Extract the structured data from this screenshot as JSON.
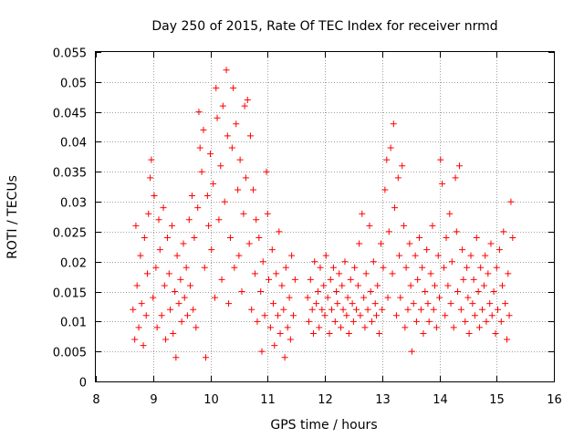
{
  "chart_data": {
    "type": "scatter",
    "title": "Day 250 of 2015, Rate Of TEC Index for receiver nrmd",
    "xlabel": "GPS time / hours",
    "ylabel": "ROTI / TECUs",
    "xlim": [
      8,
      16
    ],
    "ylim": [
      0,
      0.055
    ],
    "xticks": [
      8,
      9,
      10,
      11,
      12,
      13,
      14,
      15,
      16
    ],
    "xtick_labels": [
      "8",
      "9",
      "10",
      "11",
      "12",
      "13",
      "14",
      "15",
      "16"
    ],
    "yticks": [
      0,
      0.005,
      0.01,
      0.015,
      0.02,
      0.025,
      0.03,
      0.035,
      0.04,
      0.045,
      0.05,
      0.055
    ],
    "ytick_labels": [
      "0",
      "0.005",
      "0.01",
      "0.015",
      "0.02",
      "0.025",
      "0.03",
      "0.035",
      "0.04",
      "0.045",
      "0.05",
      "0.055"
    ],
    "grid": true,
    "marker": "+",
    "color": "#ff0000",
    "series": [
      {
        "name": "ROTI",
        "points": [
          [
            8.65,
            0.012
          ],
          [
            8.68,
            0.007
          ],
          [
            8.7,
            0.026
          ],
          [
            8.72,
            0.016
          ],
          [
            8.75,
            0.009
          ],
          [
            8.78,
            0.021
          ],
          [
            8.8,
            0.013
          ],
          [
            8.83,
            0.006
          ],
          [
            8.85,
            0.024
          ],
          [
            8.88,
            0.011
          ],
          [
            8.9,
            0.018
          ],
          [
            8.92,
            0.028
          ],
          [
            8.95,
            0.034
          ],
          [
            8.97,
            0.037
          ],
          [
            9.0,
            0.014
          ],
          [
            9.02,
            0.031
          ],
          [
            9.05,
            0.019
          ],
          [
            9.07,
            0.009
          ],
          [
            9.1,
            0.027
          ],
          [
            9.12,
            0.022
          ],
          [
            9.15,
            0.011
          ],
          [
            9.18,
            0.029
          ],
          [
            9.2,
            0.016
          ],
          [
            9.22,
            0.007
          ],
          [
            9.25,
            0.024
          ],
          [
            9.28,
            0.018
          ],
          [
            9.3,
            0.012
          ],
          [
            9.33,
            0.026
          ],
          [
            9.35,
            0.008
          ],
          [
            9.38,
            0.015
          ],
          [
            9.4,
            0.004
          ],
          [
            9.42,
            0.021
          ],
          [
            9.45,
            0.013
          ],
          [
            9.48,
            0.017
          ],
          [
            9.5,
            0.01
          ],
          [
            9.53,
            0.023
          ],
          [
            9.55,
            0.014
          ],
          [
            9.58,
            0.019
          ],
          [
            9.6,
            0.011
          ],
          [
            9.63,
            0.027
          ],
          [
            9.65,
            0.016
          ],
          [
            9.68,
            0.031
          ],
          [
            9.7,
            0.012
          ],
          [
            9.72,
            0.024
          ],
          [
            9.75,
            0.009
          ],
          [
            9.78,
            0.029
          ],
          [
            9.8,
            0.045
          ],
          [
            9.82,
            0.039
          ],
          [
            9.85,
            0.035
          ],
          [
            9.88,
            0.042
          ],
          [
            9.9,
            0.019
          ],
          [
            9.92,
            0.004
          ],
          [
            9.95,
            0.031
          ],
          [
            9.97,
            0.026
          ],
          [
            10.0,
            0.038
          ],
          [
            10.02,
            0.022
          ],
          [
            10.05,
            0.033
          ],
          [
            10.08,
            0.014
          ],
          [
            10.1,
            0.049
          ],
          [
            10.12,
            0.044
          ],
          [
            10.15,
            0.027
          ],
          [
            10.18,
            0.036
          ],
          [
            10.2,
            0.017
          ],
          [
            10.22,
            0.046
          ],
          [
            10.25,
            0.03
          ],
          [
            10.28,
            0.052
          ],
          [
            10.3,
            0.041
          ],
          [
            10.32,
            0.013
          ],
          [
            10.35,
            0.024
          ],
          [
            10.38,
            0.039
          ],
          [
            10.4,
            0.049
          ],
          [
            10.42,
            0.019
          ],
          [
            10.45,
            0.043
          ],
          [
            10.48,
            0.032
          ],
          [
            10.5,
            0.021
          ],
          [
            10.52,
            0.037
          ],
          [
            10.55,
            0.015
          ],
          [
            10.58,
            0.028
          ],
          [
            10.6,
            0.046
          ],
          [
            10.62,
            0.034
          ],
          [
            10.65,
            0.047
          ],
          [
            10.68,
            0.023
          ],
          [
            10.7,
            0.041
          ],
          [
            10.72,
            0.012
          ],
          [
            10.75,
            0.032
          ],
          [
            10.78,
            0.018
          ],
          [
            10.8,
            0.027
          ],
          [
            10.82,
            0.01
          ],
          [
            10.85,
            0.024
          ],
          [
            10.88,
            0.015
          ],
          [
            10.9,
            0.005
          ],
          [
            10.92,
            0.02
          ],
          [
            10.95,
            0.011
          ],
          [
            10.98,
            0.035
          ],
          [
            11.0,
            0.028
          ],
          [
            11.02,
            0.017
          ],
          [
            11.05,
            0.009
          ],
          [
            11.08,
            0.022
          ],
          [
            11.1,
            0.013
          ],
          [
            11.12,
            0.006
          ],
          [
            11.15,
            0.018
          ],
          [
            11.18,
            0.011
          ],
          [
            11.2,
            0.025
          ],
          [
            11.22,
            0.008
          ],
          [
            11.25,
            0.016
          ],
          [
            11.28,
            0.012
          ],
          [
            11.3,
            0.004
          ],
          [
            11.32,
            0.019
          ],
          [
            11.35,
            0.009
          ],
          [
            11.38,
            0.014
          ],
          [
            11.4,
            0.007
          ],
          [
            11.42,
            0.021
          ],
          [
            11.45,
            0.011
          ],
          [
            11.48,
            0.017
          ],
          [
            11.7,
            0.014
          ],
          [
            11.72,
            0.01
          ],
          [
            11.75,
            0.017
          ],
          [
            11.78,
            0.012
          ],
          [
            11.8,
            0.008
          ],
          [
            11.82,
            0.02
          ],
          [
            11.85,
            0.013
          ],
          [
            11.88,
            0.015
          ],
          [
            11.9,
            0.009
          ],
          [
            11.92,
            0.019
          ],
          [
            11.95,
            0.012
          ],
          [
            11.98,
            0.016
          ],
          [
            12.0,
            0.011
          ],
          [
            12.02,
            0.021
          ],
          [
            12.05,
            0.014
          ],
          [
            12.08,
            0.008
          ],
          [
            12.1,
            0.017
          ],
          [
            12.12,
            0.012
          ],
          [
            12.15,
            0.019
          ],
          [
            12.18,
            0.01
          ],
          [
            12.2,
            0.015
          ],
          [
            12.22,
            0.013
          ],
          [
            12.25,
            0.018
          ],
          [
            12.28,
            0.009
          ],
          [
            12.3,
            0.016
          ],
          [
            12.32,
            0.012
          ],
          [
            12.35,
            0.02
          ],
          [
            12.38,
            0.011
          ],
          [
            12.4,
            0.014
          ],
          [
            12.42,
            0.008
          ],
          [
            12.45,
            0.017
          ],
          [
            12.48,
            0.013
          ],
          [
            12.5,
            0.01
          ],
          [
            12.52,
            0.019
          ],
          [
            12.55,
            0.012
          ],
          [
            12.58,
            0.016
          ],
          [
            12.6,
            0.023
          ],
          [
            12.62,
            0.011
          ],
          [
            12.65,
            0.028
          ],
          [
            12.68,
            0.014
          ],
          [
            12.7,
            0.009
          ],
          [
            12.72,
            0.018
          ],
          [
            12.75,
            0.012
          ],
          [
            12.78,
            0.026
          ],
          [
            12.8,
            0.015
          ],
          [
            12.82,
            0.01
          ],
          [
            12.85,
            0.02
          ],
          [
            12.88,
            0.013
          ],
          [
            12.9,
            0.011
          ],
          [
            12.92,
            0.016
          ],
          [
            12.95,
            0.008
          ],
          [
            12.98,
            0.023
          ],
          [
            13.0,
            0.012
          ],
          [
            13.02,
            0.019
          ],
          [
            13.05,
            0.032
          ],
          [
            13.08,
            0.037
          ],
          [
            13.1,
            0.014
          ],
          [
            13.12,
            0.025
          ],
          [
            13.15,
            0.039
          ],
          [
            13.18,
            0.018
          ],
          [
            13.2,
            0.043
          ],
          [
            13.22,
            0.029
          ],
          [
            13.25,
            0.011
          ],
          [
            13.28,
            0.034
          ],
          [
            13.3,
            0.021
          ],
          [
            13.32,
            0.014
          ],
          [
            13.35,
            0.036
          ],
          [
            13.38,
            0.026
          ],
          [
            13.4,
            0.009
          ],
          [
            13.42,
            0.019
          ],
          [
            13.45,
            0.012
          ],
          [
            13.48,
            0.023
          ],
          [
            13.5,
            0.016
          ],
          [
            13.52,
            0.005
          ],
          [
            13.55,
            0.013
          ],
          [
            13.58,
            0.021
          ],
          [
            13.6,
            0.01
          ],
          [
            13.62,
            0.017
          ],
          [
            13.65,
            0.024
          ],
          [
            13.68,
            0.012
          ],
          [
            13.7,
            0.019
          ],
          [
            13.72,
            0.008
          ],
          [
            13.75,
            0.015
          ],
          [
            13.78,
            0.022
          ],
          [
            13.8,
            0.013
          ],
          [
            13.82,
            0.01
          ],
          [
            13.85,
            0.018
          ],
          [
            13.88,
            0.026
          ],
          [
            13.9,
            0.012
          ],
          [
            13.92,
            0.016
          ],
          [
            13.95,
            0.009
          ],
          [
            13.98,
            0.021
          ],
          [
            14.0,
            0.014
          ],
          [
            14.02,
            0.037
          ],
          [
            14.05,
            0.033
          ],
          [
            14.08,
            0.019
          ],
          [
            14.1,
            0.011
          ],
          [
            14.12,
            0.024
          ],
          [
            14.15,
            0.016
          ],
          [
            14.18,
            0.028
          ],
          [
            14.2,
            0.013
          ],
          [
            14.22,
            0.02
          ],
          [
            14.25,
            0.009
          ],
          [
            14.28,
            0.034
          ],
          [
            14.3,
            0.025
          ],
          [
            14.32,
            0.015
          ],
          [
            14.35,
            0.036
          ],
          [
            14.38,
            0.012
          ],
          [
            14.4,
            0.022
          ],
          [
            14.42,
            0.017
          ],
          [
            14.45,
            0.01
          ],
          [
            14.48,
            0.019
          ],
          [
            14.5,
            0.014
          ],
          [
            14.52,
            0.008
          ],
          [
            14.55,
            0.021
          ],
          [
            14.58,
            0.013
          ],
          [
            14.6,
            0.017
          ],
          [
            14.62,
            0.011
          ],
          [
            14.65,
            0.024
          ],
          [
            14.68,
            0.015
          ],
          [
            14.7,
            0.009
          ],
          [
            14.72,
            0.019
          ],
          [
            14.75,
            0.012
          ],
          [
            14.78,
            0.016
          ],
          [
            14.8,
            0.021
          ],
          [
            14.82,
            0.01
          ],
          [
            14.85,
            0.018
          ],
          [
            14.88,
            0.013
          ],
          [
            14.9,
            0.023
          ],
          [
            14.92,
            0.011
          ],
          [
            14.95,
            0.015
          ],
          [
            14.98,
            0.008
          ],
          [
            15.0,
            0.019
          ],
          [
            15.02,
            0.012
          ],
          [
            15.05,
            0.022
          ],
          [
            15.08,
            0.01
          ],
          [
            15.1,
            0.016
          ],
          [
            15.12,
            0.025
          ],
          [
            15.15,
            0.013
          ],
          [
            15.18,
            0.007
          ],
          [
            15.2,
            0.018
          ],
          [
            15.22,
            0.011
          ],
          [
            15.25,
            0.03
          ],
          [
            15.28,
            0.024
          ]
        ]
      }
    ]
  }
}
